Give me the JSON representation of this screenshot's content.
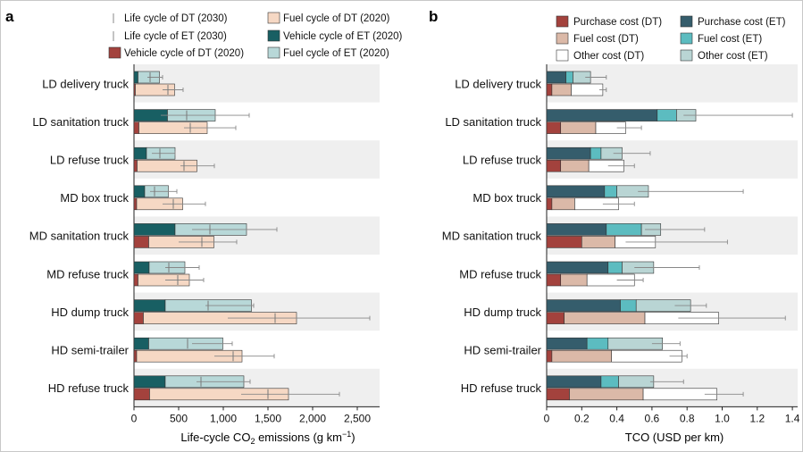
{
  "colors": {
    "veh_dt": "#a3423d",
    "veh_et": "#185f63",
    "fuel_dt": "#f6d8c4",
    "fuel_et": "#b8d8d8",
    "purchase_dt": "#a3423d",
    "fuel_cost_dt": "#dbb9a8",
    "other_dt": "#ffffff",
    "purchase_et": "#355d6c",
    "fuel_cost_et": "#5cbcc0",
    "other_et": "#b9d5d4",
    "stripe": "#efefef",
    "edge": "#333333",
    "whisker": "#888888"
  },
  "chart_data": [
    {
      "panel_label": "a",
      "type": "bar",
      "orientation": "horizontal",
      "stacked": true,
      "xlabel": "Life-cycle CO",
      "xlabel_sub": "2",
      "xlabel_tail": " emissions (g km",
      "xlabel_sup": "−1",
      "xlabel_end": ")",
      "xlim": [
        0,
        2750
      ],
      "xticks": [
        0,
        500,
        1000,
        1500,
        2000,
        2500
      ],
      "xtick_labels": [
        "0",
        "500",
        "1,000",
        "1,500",
        "2,000",
        "2,500"
      ],
      "legend": [
        {
          "label": "Life cycle of DT (2030)",
          "kind": "tick"
        },
        {
          "label": "Life cycle of ET (2030)",
          "kind": "tick"
        },
        {
          "label": "Vehicle cycle of DT (2020)",
          "kind": "veh_dt"
        },
        {
          "label": "Fuel cycle of DT (2020)",
          "kind": "fuel_dt"
        },
        {
          "label": "Vehicle cycle of ET (2020)",
          "kind": "veh_et"
        },
        {
          "label": "Fuel cycle of ET (2020)",
          "kind": "fuel_et"
        }
      ],
      "categories": [
        "LD delivery truck",
        "LD sanitation truck",
        "LD refuse truck",
        "MD box truck",
        "MD sanitation truck",
        "MD refuse truck",
        "HD dump truck",
        "HD semi-trailer",
        "HD refuse truck"
      ],
      "et": {
        "vehicle_cycle": [
          45,
          375,
          140,
          120,
          460,
          170,
          350,
          165,
          350
        ],
        "fuel_cycle": [
          240,
          535,
          320,
          265,
          800,
          400,
          965,
          830,
          880
        ],
        "range_low": [
          150,
          300,
          200,
          180,
          650,
          350,
          800,
          650,
          700
        ],
        "range_high": [
          320,
          1290,
          460,
          480,
          1600,
          730,
          1340,
          1100,
          1300
        ],
        "life_cycle_2030": [
          180,
          590,
          290,
          230,
          850,
          390,
          830,
          600,
          750
        ]
      },
      "dt": {
        "vehicle_cycle": [
          15,
          55,
          35,
          30,
          165,
          45,
          105,
          30,
          175
        ],
        "fuel_cycle": [
          440,
          765,
          670,
          515,
          730,
          575,
          1715,
          1180,
          1555
        ],
        "range_low": [
          320,
          560,
          520,
          320,
          500,
          350,
          1050,
          900,
          1200
        ],
        "range_high": [
          550,
          1140,
          900,
          800,
          1150,
          780,
          2640,
          1570,
          2300
        ],
        "life_cycle_2030": [
          380,
          630,
          560,
          440,
          760,
          490,
          1580,
          1110,
          1500
        ]
      }
    },
    {
      "panel_label": "b",
      "type": "bar",
      "orientation": "horizontal",
      "stacked": true,
      "xlabel": "TCO (USD per km)",
      "xlim": [
        0,
        1.43
      ],
      "xticks": [
        0,
        0.2,
        0.4,
        0.6,
        0.8,
        1.0,
        1.2,
        1.4
      ],
      "xtick_labels": [
        "0",
        "0.2",
        "0.4",
        "0.6",
        "0.8",
        "1.0",
        "1.2",
        "1.4"
      ],
      "legend": [
        {
          "label": "Purchase cost (DT)",
          "kind": "purchase_dt"
        },
        {
          "label": "Purchase cost (ET)",
          "kind": "purchase_et"
        },
        {
          "label": "Fuel cost (DT)",
          "kind": "fuel_cost_dt"
        },
        {
          "label": "Fuel cost (ET)",
          "kind": "fuel_cost_et"
        },
        {
          "label": "Other cost (DT)",
          "kind": "other_dt"
        },
        {
          "label": "Other cost (ET)",
          "kind": "other_et"
        }
      ],
      "categories": [
        "LD delivery truck",
        "LD sanitation truck",
        "LD refuse truck",
        "MD box truck",
        "MD sanitation truck",
        "MD refuse truck",
        "HD dump truck",
        "HD semi-trailer",
        "HD refuse truck"
      ],
      "et": {
        "purchase": [
          0.11,
          0.63,
          0.25,
          0.33,
          0.34,
          0.35,
          0.42,
          0.23,
          0.31
        ],
        "fuel": [
          0.04,
          0.11,
          0.06,
          0.07,
          0.2,
          0.08,
          0.09,
          0.12,
          0.1
        ],
        "other": [
          0.1,
          0.11,
          0.12,
          0.18,
          0.11,
          0.18,
          0.31,
          0.31,
          0.2
        ],
        "range_low": [
          0.22,
          0.78,
          0.38,
          0.52,
          0.56,
          0.5,
          0.73,
          0.6,
          0.59
        ],
        "range_high": [
          0.34,
          1.4,
          0.59,
          1.12,
          0.9,
          0.87,
          0.91,
          0.76,
          0.78
        ]
      },
      "dt": {
        "purchase": [
          0.03,
          0.08,
          0.08,
          0.03,
          0.2,
          0.08,
          0.1,
          0.03,
          0.13
        ],
        "fuel": [
          0.11,
          0.2,
          0.16,
          0.13,
          0.19,
          0.15,
          0.46,
          0.34,
          0.42
        ],
        "other": [
          0.18,
          0.17,
          0.2,
          0.25,
          0.23,
          0.27,
          0.42,
          0.4,
          0.42
        ],
        "range_low": [
          0.3,
          0.4,
          0.35,
          0.32,
          0.45,
          0.4,
          0.75,
          0.7,
          0.9
        ],
        "range_high": [
          0.34,
          0.54,
          0.5,
          0.5,
          1.03,
          0.55,
          1.36,
          0.8,
          1.12
        ]
      }
    }
  ]
}
